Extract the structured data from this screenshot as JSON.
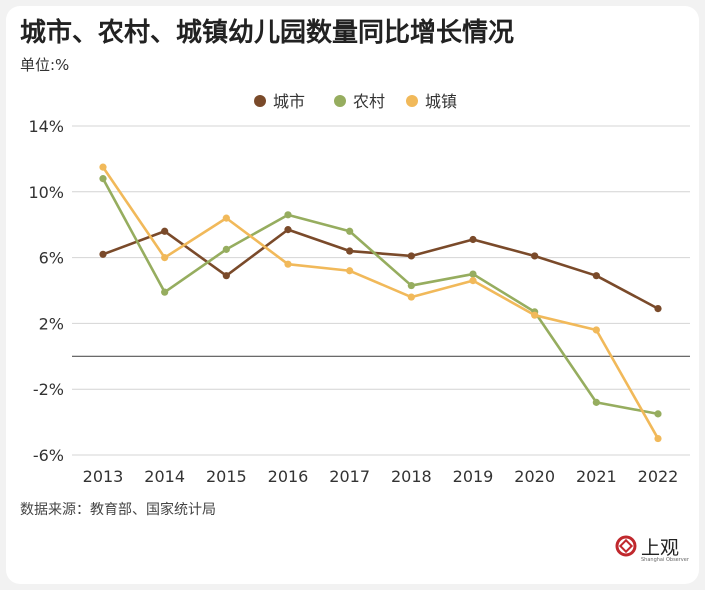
{
  "chart_data": {
    "type": "line",
    "title": "城市、农村、城镇幼儿园数量同比增长情况",
    "unit_label": "单位:%",
    "source": "数据来源：教育部、国家统计局",
    "categories": [
      "2013",
      "2014",
      "2015",
      "2016",
      "2017",
      "2018",
      "2019",
      "2020",
      "2021",
      "2022"
    ],
    "y_ticks": [
      14,
      10,
      6,
      2,
      -2,
      -6
    ],
    "y_tick_labels": [
      "14%",
      "10%",
      "6%",
      "2%",
      "-2%",
      "-6%"
    ],
    "ylim": [
      -6,
      14
    ],
    "legend_position": "top-center",
    "series": [
      {
        "name": "城市",
        "color": "#7a4a2a",
        "values": [
          6.2,
          7.6,
          4.9,
          7.7,
          6.4,
          6.1,
          7.1,
          6.1,
          4.9,
          2.9
        ]
      },
      {
        "name": "农村",
        "color": "#96ad5f",
        "values": [
          10.8,
          3.9,
          6.5,
          8.6,
          7.6,
          4.3,
          5.0,
          2.7,
          -2.8,
          -3.5
        ]
      },
      {
        "name": "城镇",
        "color": "#f1b95a",
        "values": [
          11.5,
          6.0,
          8.4,
          5.6,
          5.2,
          3.6,
          4.6,
          2.5,
          1.6,
          -5.0
        ]
      }
    ]
  },
  "branding": {
    "logo_text": "上观",
    "logo_subtext": "Shanghai Observer"
  }
}
